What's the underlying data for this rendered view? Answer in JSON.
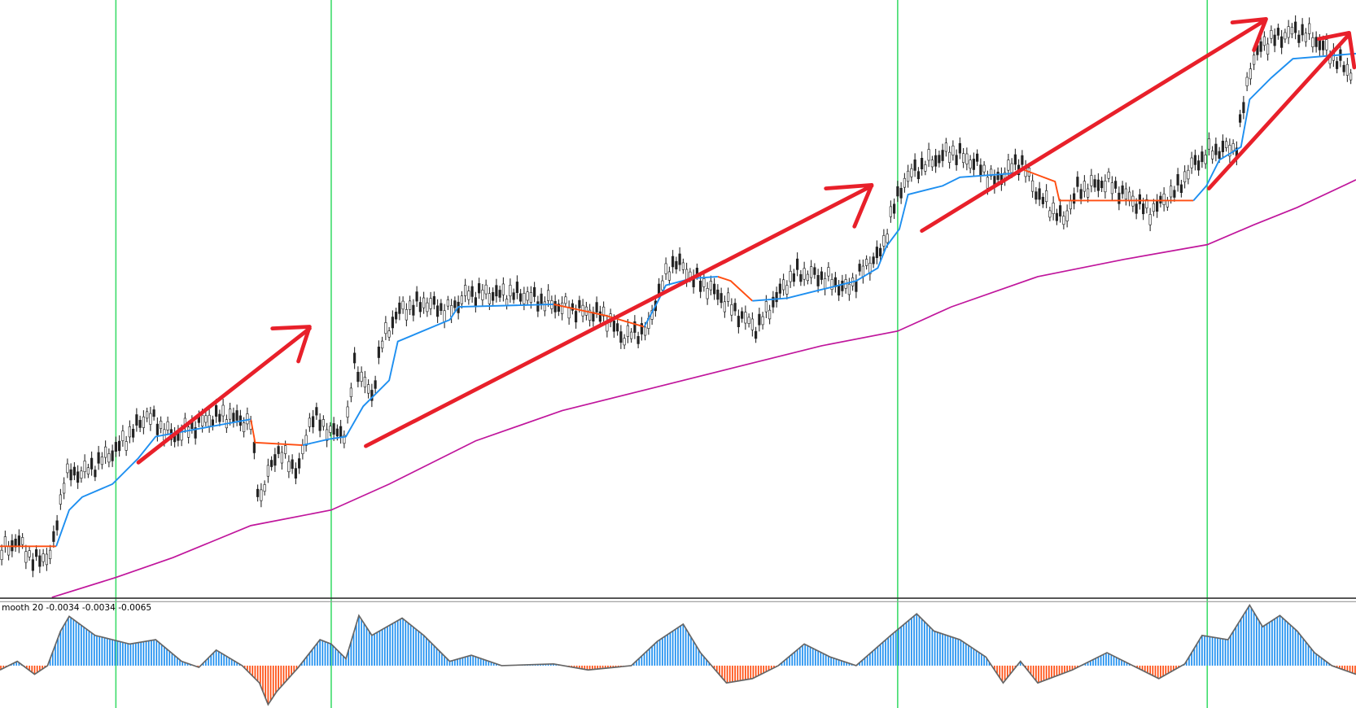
{
  "indicator_label": "mooth  20 -0.0034 -0.0034 -0.0065"
}
